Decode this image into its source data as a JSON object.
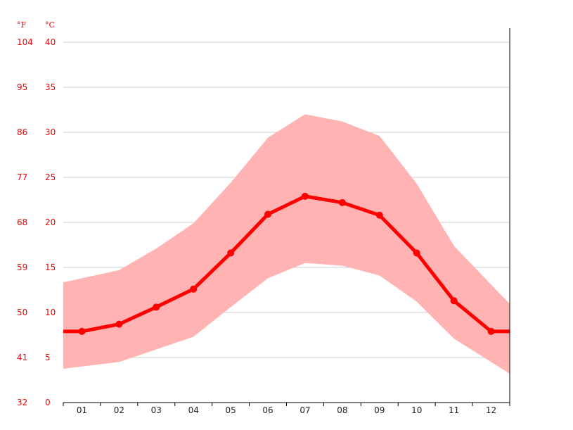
{
  "chart_data": {
    "type": "line",
    "title": "",
    "units": {
      "fahrenheit": "°F",
      "celsius": "°C"
    },
    "categories": [
      "01",
      "02",
      "03",
      "04",
      "05",
      "06",
      "07",
      "08",
      "09",
      "10",
      "11",
      "12"
    ],
    "series": [
      {
        "values": [
          7.9,
          8.7,
          10.6,
          12.6,
          16.6,
          20.9,
          22.9,
          22.2,
          20.8,
          16.6,
          11.3,
          7.9
        ]
      }
    ],
    "band": {
      "low": [
        4.0,
        4.5,
        5.9,
        7.3,
        10.6,
        13.8,
        15.5,
        15.2,
        14.1,
        11.2,
        7.1,
        4.5
      ],
      "high": [
        13.8,
        14.7,
        17.1,
        19.9,
        24.4,
        29.4,
        32.0,
        31.2,
        29.6,
        24.3,
        17.4,
        13.1
      ]
    },
    "y_celsius_ticks": [
      "0",
      "5",
      "10",
      "15",
      "20",
      "25",
      "30",
      "35",
      "40"
    ],
    "y_fahrenheit_ticks": [
      "32",
      "41",
      "50",
      "59",
      "68",
      "77",
      "86",
      "95",
      "104"
    ],
    "ylim": [
      0,
      40
    ],
    "grid": true,
    "colors": {
      "line": "#ff0000",
      "band": "#ffb3b3",
      "grid": "#cccccc",
      "axis_text": "#ff0000"
    }
  }
}
